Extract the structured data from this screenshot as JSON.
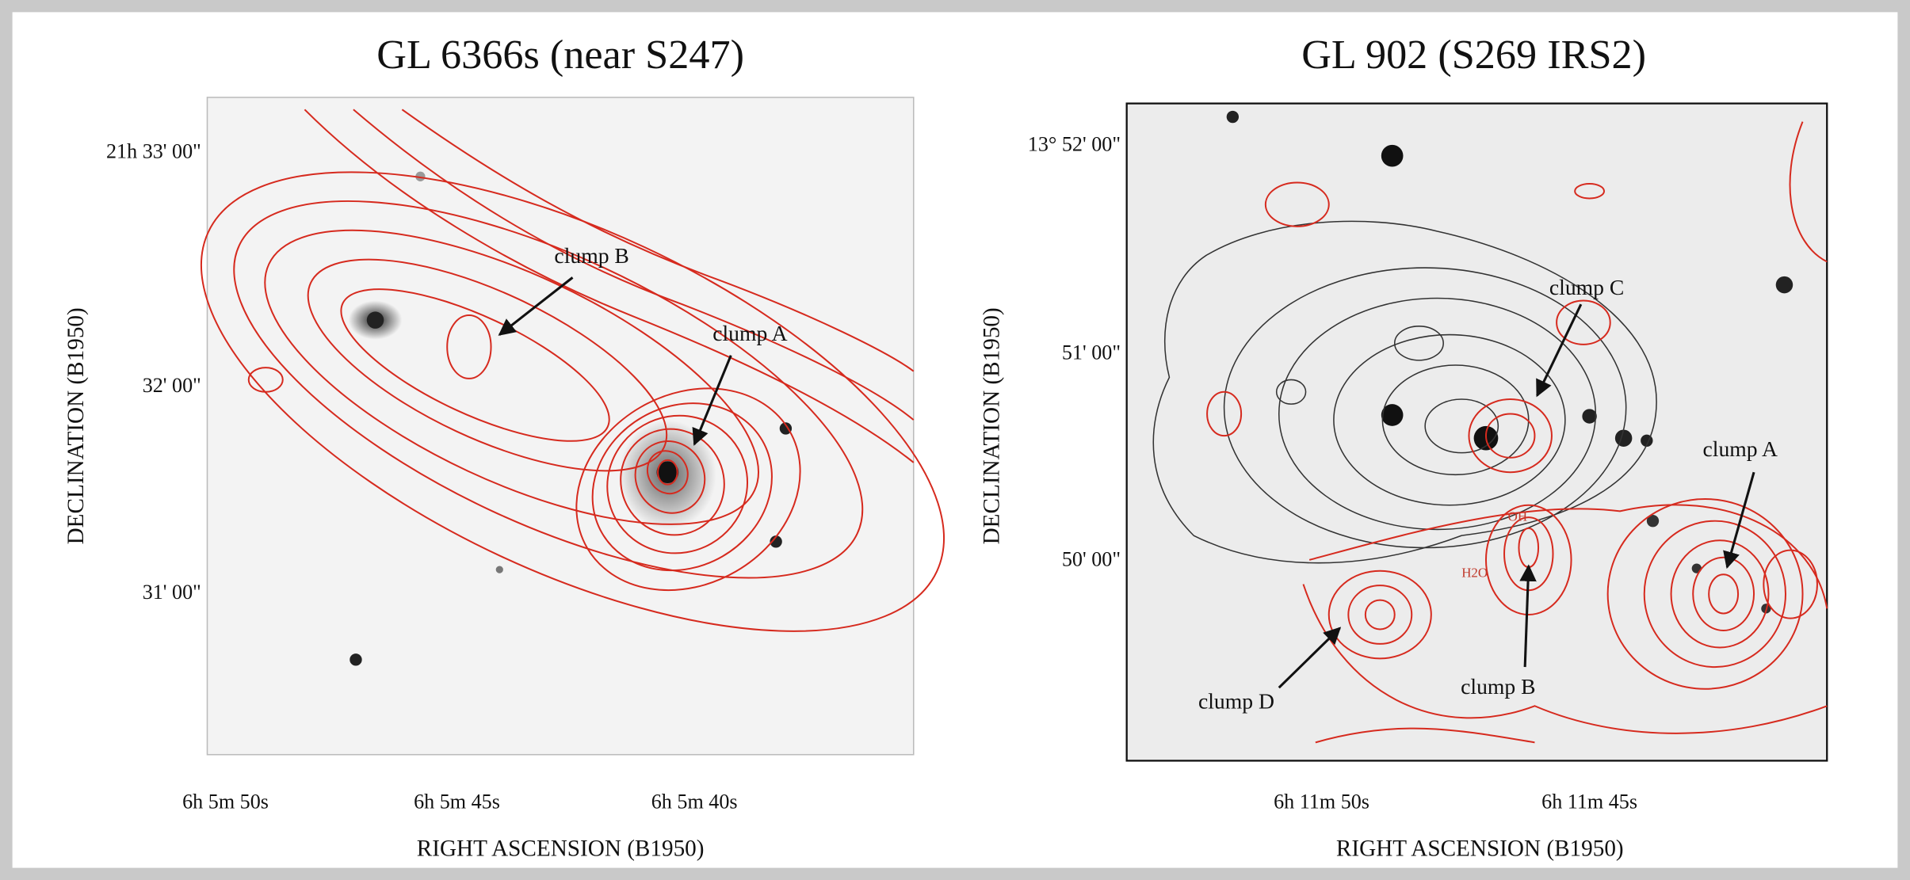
{
  "panels": [
    {
      "title": "GL 6366s (near S247)",
      "y_label": "DECLINATION (B1950)",
      "x_label": "RIGHT ASCENSION (B1950)",
      "y_ticks": [
        "21h 33' 00\"",
        "32' 00\"",
        "31' 00\""
      ],
      "x_ticks": [
        "6h 5m 50s",
        "6h 5m 45s",
        "6h 5m 40s"
      ],
      "annotations": [
        "clump B",
        "clump A"
      ]
    },
    {
      "title": "GL 902 (S269 IRS2)",
      "y_label": "DECLINATION (B1950)",
      "x_label": "RIGHT ASCENSION (B1950)",
      "y_ticks": [
        "13° 52' 00\"",
        "51' 00\"",
        "50' 00\""
      ],
      "x_ticks": [
        "6h 11m 50s",
        "6h 11m 45s"
      ],
      "annotations": [
        "clump C",
        "clump A",
        "clump B",
        "clump D"
      ],
      "markers": [
        "H2O",
        "OH"
      ]
    }
  ]
}
